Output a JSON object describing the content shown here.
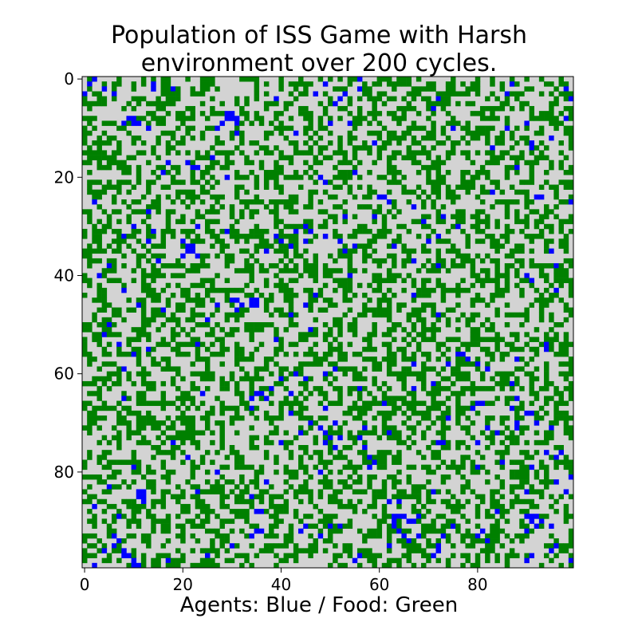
{
  "chart_data": {
    "type": "heatmap",
    "title_lines": [
      "Population of ISS Game with Harsh",
      "environment over 200 cycles."
    ],
    "xlabel": "Agents: Blue / Food: Green",
    "ylabel": "",
    "grid_size": 100,
    "xlim": [
      0,
      99
    ],
    "ylim": [
      99,
      0
    ],
    "x_ticks": [
      "0",
      "20",
      "40",
      "60",
      "80"
    ],
    "y_ticks": [
      "0",
      "20",
      "40",
      "60",
      "80"
    ],
    "legend": [
      {
        "label": "Agents",
        "color": "#0000ff"
      },
      {
        "label": "Food",
        "color": "#008000"
      }
    ],
    "colors": {
      "empty": "#d3d3d3",
      "food": "#008000",
      "agent": "#0000ff"
    },
    "approx_fractions": {
      "food": 0.4,
      "agent": 0.06
    },
    "agent_clusters": [
      [
        1,
        1
      ],
      [
        2,
        0
      ],
      [
        4,
        2
      ],
      [
        0,
        3
      ],
      [
        9,
        8
      ],
      [
        10,
        8
      ],
      [
        10,
        9
      ],
      [
        11,
        9
      ],
      [
        8,
        9
      ],
      [
        29,
        7
      ],
      [
        30,
        7
      ],
      [
        29,
        8
      ],
      [
        30,
        8
      ],
      [
        28,
        9
      ],
      [
        31,
        9
      ],
      [
        27,
        10
      ],
      [
        49,
        1
      ],
      [
        51,
        5
      ],
      [
        50,
        9
      ],
      [
        52,
        4
      ],
      [
        53,
        3
      ],
      [
        56,
        2
      ],
      [
        72,
        4
      ],
      [
        71,
        6
      ],
      [
        75,
        10
      ],
      [
        87,
        1
      ],
      [
        86,
        10
      ],
      [
        91,
        13
      ],
      [
        98,
        2
      ],
      [
        99,
        4
      ],
      [
        22,
        18
      ],
      [
        23,
        18
      ],
      [
        21,
        17
      ],
      [
        17,
        17
      ],
      [
        26,
        16
      ],
      [
        16,
        19
      ],
      [
        48,
        20
      ],
      [
        49,
        21
      ],
      [
        60,
        24
      ],
      [
        61,
        24
      ],
      [
        62,
        25
      ],
      [
        83,
        23
      ],
      [
        92,
        24
      ],
      [
        93,
        24
      ],
      [
        99,
        25
      ],
      [
        8,
        32
      ],
      [
        10,
        30
      ],
      [
        13,
        33
      ],
      [
        14,
        31
      ],
      [
        20,
        33
      ],
      [
        21,
        34
      ],
      [
        22,
        34
      ],
      [
        21,
        35
      ],
      [
        22,
        35
      ],
      [
        23,
        36
      ],
      [
        20,
        36
      ],
      [
        39,
        32
      ],
      [
        40,
        33
      ],
      [
        43,
        31
      ],
      [
        45,
        30
      ],
      [
        46,
        31
      ],
      [
        49,
        32
      ],
      [
        52,
        33
      ],
      [
        55,
        34
      ],
      [
        63,
        34
      ],
      [
        70,
        33
      ],
      [
        72,
        32
      ],
      [
        76,
        30
      ],
      [
        37,
        35
      ],
      [
        54,
        40
      ],
      [
        45,
        46
      ],
      [
        47,
        44
      ],
      [
        30,
        45
      ],
      [
        31,
        45
      ],
      [
        34,
        45
      ],
      [
        35,
        45
      ],
      [
        34,
        46
      ],
      [
        35,
        46
      ],
      [
        32,
        46
      ],
      [
        31,
        47
      ],
      [
        23,
        54
      ],
      [
        4,
        52
      ],
      [
        7,
        54
      ],
      [
        13,
        55
      ],
      [
        10,
        56
      ],
      [
        76,
        56
      ],
      [
        77,
        56
      ],
      [
        78,
        57
      ],
      [
        80,
        58
      ],
      [
        82,
        59
      ],
      [
        88,
        57
      ],
      [
        49,
        60
      ],
      [
        43,
        60
      ],
      [
        45,
        61
      ],
      [
        35,
        64
      ],
      [
        36,
        64
      ],
      [
        37,
        65
      ],
      [
        38,
        63
      ],
      [
        34,
        65
      ],
      [
        42,
        64
      ],
      [
        56,
        63
      ],
      [
        67,
        63
      ],
      [
        71,
        62
      ],
      [
        80,
        66
      ],
      [
        81,
        66
      ],
      [
        87,
        67
      ],
      [
        90,
        68
      ],
      [
        91,
        68
      ],
      [
        88,
        65
      ],
      [
        42,
        68
      ],
      [
        49,
        67
      ],
      [
        46,
        70
      ],
      [
        48,
        71
      ],
      [
        49,
        72
      ],
      [
        50,
        73
      ],
      [
        49,
        74
      ],
      [
        51,
        75
      ],
      [
        52,
        73
      ],
      [
        57,
        71
      ],
      [
        62,
        72
      ],
      [
        72,
        74
      ],
      [
        73,
        74
      ],
      [
        80,
        74
      ],
      [
        84,
        72
      ],
      [
        88,
        70
      ],
      [
        95,
        71
      ],
      [
        85,
        78
      ],
      [
        11,
        84
      ],
      [
        12,
        84
      ],
      [
        11,
        85
      ],
      [
        12,
        85
      ],
      [
        12,
        86
      ],
      [
        58,
        77
      ],
      [
        59,
        78
      ],
      [
        58,
        79
      ],
      [
        48,
        80
      ],
      [
        37,
        82
      ],
      [
        80,
        79
      ],
      [
        94,
        76
      ],
      [
        97,
        76
      ],
      [
        63,
        89
      ],
      [
        64,
        89
      ],
      [
        65,
        89
      ],
      [
        66,
        90
      ],
      [
        67,
        90
      ],
      [
        63,
        90
      ],
      [
        63,
        91
      ],
      [
        64,
        92
      ],
      [
        65,
        93
      ],
      [
        66,
        94
      ],
      [
        68,
        93
      ],
      [
        90,
        89
      ],
      [
        91,
        89
      ],
      [
        92,
        89
      ],
      [
        93,
        90
      ],
      [
        92,
        91
      ],
      [
        91,
        90
      ],
      [
        95,
        91
      ],
      [
        84,
        88
      ],
      [
        90,
        92
      ],
      [
        6,
        93
      ],
      [
        7,
        94
      ],
      [
        6,
        95
      ],
      [
        4,
        96
      ],
      [
        8,
        96
      ],
      [
        9,
        97
      ],
      [
        10,
        98
      ],
      [
        11,
        99
      ],
      [
        35,
        92
      ],
      [
        36,
        92
      ],
      [
        34,
        93
      ],
      [
        44,
        92
      ],
      [
        45,
        91
      ],
      [
        50,
        91
      ],
      [
        48,
        93
      ],
      [
        56,
        97
      ],
      [
        55,
        98
      ],
      [
        62,
        95
      ],
      [
        71,
        97
      ],
      [
        72,
        96
      ],
      [
        80,
        93
      ],
      [
        81,
        92
      ],
      [
        82,
        94
      ],
      [
        91,
        97
      ],
      [
        95,
        96
      ],
      [
        96,
        95
      ],
      [
        99,
        98
      ],
      [
        2,
        99
      ],
      [
        17,
        98
      ],
      [
        25,
        97
      ],
      [
        30,
        95
      ]
    ]
  }
}
